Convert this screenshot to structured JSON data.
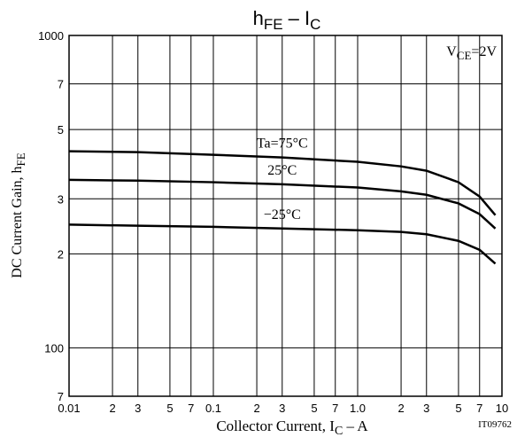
{
  "chart_data": {
    "type": "line",
    "title": [
      "h",
      "FE",
      " – I",
      "C"
    ],
    "x_label": [
      "Collector Current, I",
      "C",
      " – A"
    ],
    "y_label": [
      "DC Current Gain, h",
      "FE"
    ],
    "annotation": [
      "V",
      "CE",
      "=2V"
    ],
    "figure_code": "IT09762",
    "log_x": true,
    "log_y": true,
    "grid": true,
    "xlim": [
      0.01,
      10
    ],
    "ylim": [
      70,
      1000
    ],
    "xticks": [
      0.01,
      {
        "value": 0.02,
        "label": "2"
      },
      {
        "value": 0.03,
        "label": "3"
      },
      {
        "value": 0.05,
        "label": "5"
      },
      {
        "value": 0.07,
        "label": "7"
      },
      0.1,
      {
        "value": 0.2,
        "label": "2"
      },
      {
        "value": 0.3,
        "label": "3"
      },
      {
        "value": 0.5,
        "label": "5"
      },
      {
        "value": 0.7,
        "label": "7"
      },
      {
        "value": 1,
        "label": "1.0"
      },
      {
        "value": 2,
        "label": "2"
      },
      {
        "value": 3,
        "label": "3"
      },
      {
        "value": 5,
        "label": "5"
      },
      {
        "value": 7,
        "label": "7"
      },
      10
    ],
    "yticks": [
      {
        "value": 70,
        "label": "7"
      },
      100,
      {
        "value": 200,
        "label": "2"
      },
      {
        "value": 300,
        "label": "3"
      },
      {
        "value": 500,
        "label": "5"
      },
      {
        "value": 700,
        "label": "7"
      },
      1000
    ],
    "x": [
      0.01,
      0.03,
      0.1,
      0.3,
      1,
      2,
      3,
      5,
      7,
      9
    ],
    "series": [
      {
        "name": "Ta=75°C",
        "color": "#000000",
        "values": [
          426,
          423,
          415,
          407,
          394,
          381,
          369,
          339,
          305,
          266
        ]
      },
      {
        "name": "25°C",
        "color": "#000000",
        "values": [
          345,
          343,
          339,
          334,
          326,
          317,
          309,
          290,
          268,
          241
        ]
      },
      {
        "name": "−25°C",
        "color": "#000000",
        "values": [
          248,
          246,
          244,
          241,
          238,
          235,
          231,
          220,
          206,
          186
        ]
      }
    ]
  }
}
